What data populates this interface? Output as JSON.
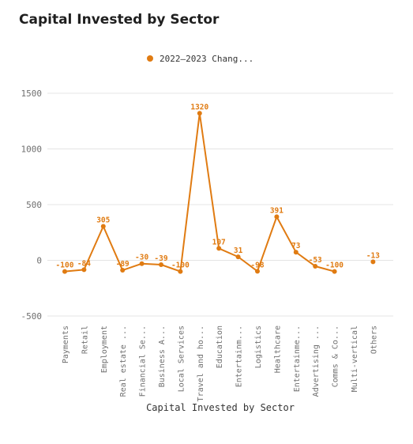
{
  "chart_data": {
    "type": "line",
    "title": "Capital Invested by Sector",
    "xlabel": "Capital Invested by Sector",
    "ylabel": "",
    "ylim": [
      -500,
      1500
    ],
    "yticks": [
      -500,
      0,
      500,
      1000,
      1500
    ],
    "color": "#e07b12",
    "grid": true,
    "legend_position": "top-center",
    "categories": [
      "Payments",
      "Retail",
      "Employment",
      "Real estate ...",
      "Financial Se...",
      "Business A...",
      "Local Services",
      "Travel and ho...",
      "Education",
      "Entertainm...",
      "Logistics",
      "Healthcare",
      "Entertainme...",
      "Advertising ...",
      "Comms & Co...",
      "Multi-vertical",
      "Others"
    ],
    "series": [
      {
        "name": "2022–2023 Chang...",
        "values": [
          -100,
          -84,
          305,
          -89,
          -30,
          -39,
          -100,
          1320,
          107,
          31,
          -98,
          391,
          73,
          -53,
          -100,
          null,
          -13
        ]
      }
    ]
  }
}
